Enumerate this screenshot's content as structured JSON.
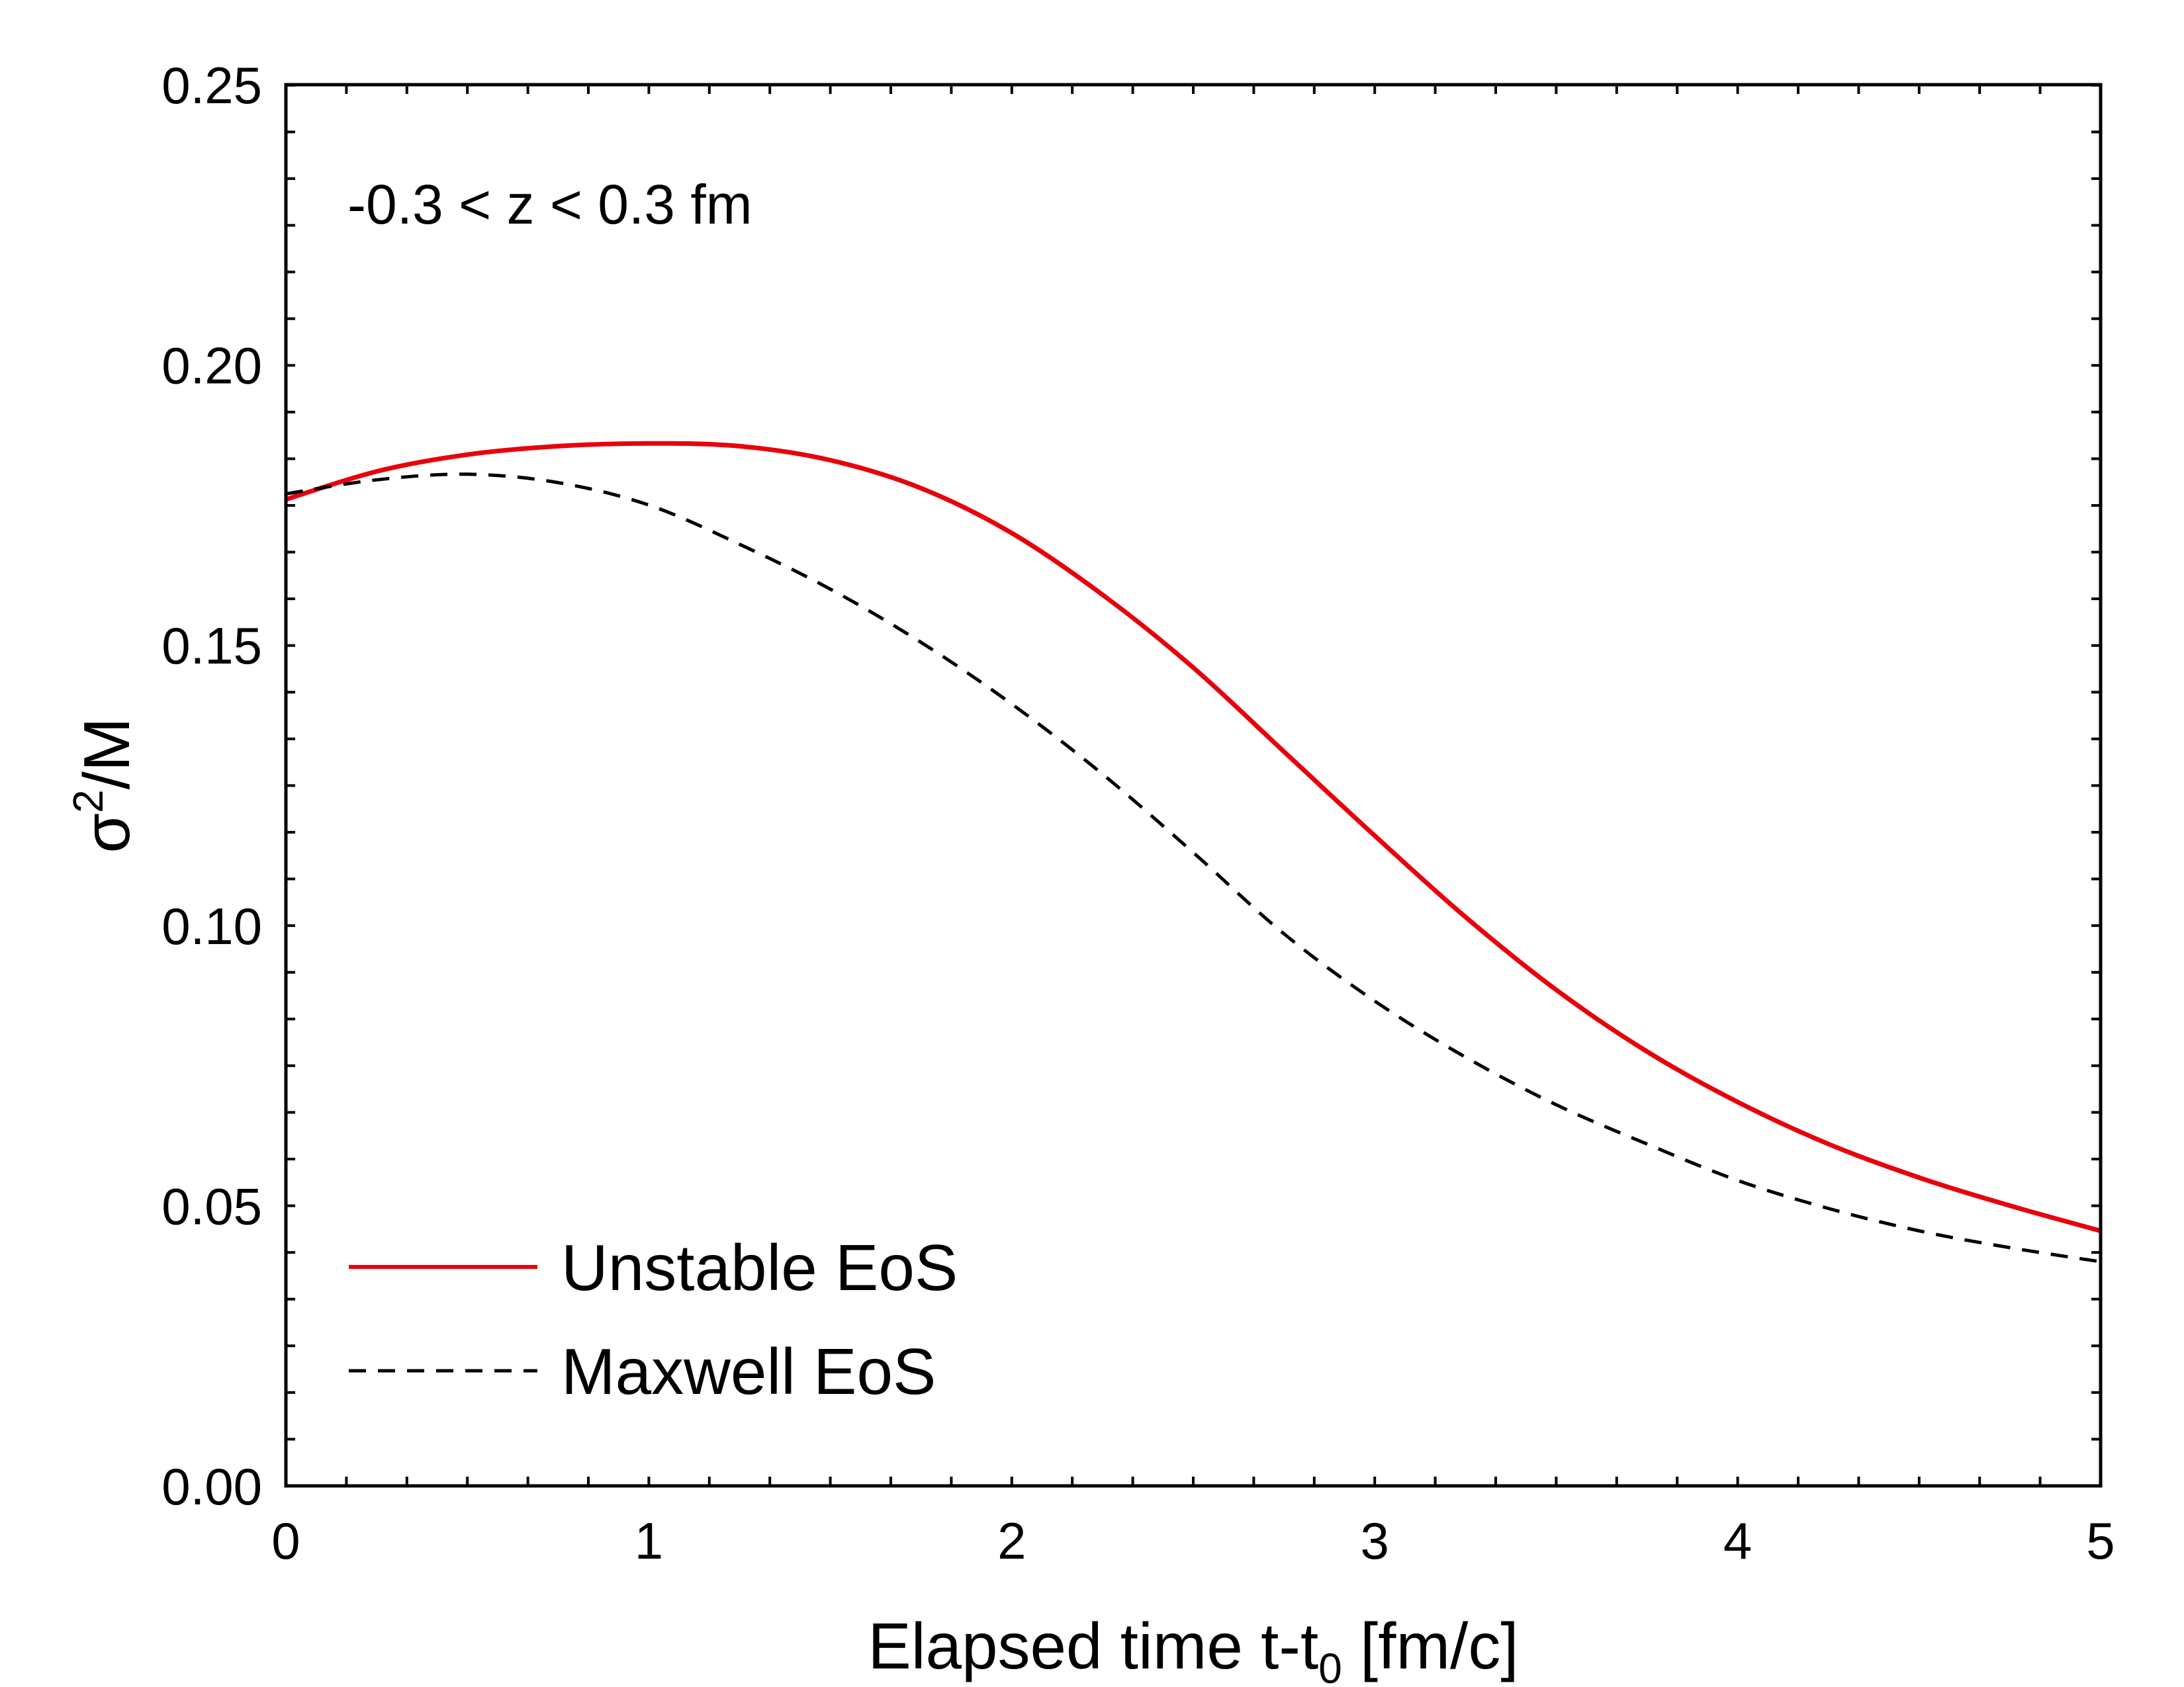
{
  "chart_data": {
    "type": "line",
    "xlabel": "Elapsed time t-t",
    "xlabel_sub": "0",
    "xlabel_suffix": " [fm/c]",
    "ylabel": "σ",
    "ylabel_sup": "2",
    "ylabel_suffix": "/M",
    "xlim": [
      0,
      5
    ],
    "ylim": [
      0,
      0.25
    ],
    "xticks": [
      0,
      1,
      2,
      3,
      4,
      5
    ],
    "xtick_labels": [
      "0",
      "1",
      "2",
      "3",
      "4",
      "5"
    ],
    "yticks": [
      0,
      0.05,
      0.1,
      0.15,
      0.2,
      0.25
    ],
    "ytick_labels": [
      "0.00",
      "0.05",
      "0.10",
      "0.15",
      "0.20",
      "0.25"
    ],
    "x_minor_step": 0.166667,
    "y_minor_step": 0.00833,
    "annotation": "-0.3 < z < 0.3 fm",
    "legend_position": "bottom-left",
    "series": [
      {
        "name": "Unstable EoS",
        "color": "#e8000b",
        "style": "solid",
        "x": [
          0,
          0.25,
          0.5,
          0.75,
          1.0,
          1.25,
          1.5,
          1.75,
          2.0,
          2.25,
          2.5,
          2.75,
          3.0,
          3.25,
          3.5,
          3.75,
          4.0,
          4.25,
          4.5,
          4.75,
          5.0
        ],
        "y": [
          0.176,
          0.181,
          0.184,
          0.1855,
          0.186,
          0.1855,
          0.183,
          0.178,
          0.17,
          0.159,
          0.146,
          0.131,
          0.116,
          0.1015,
          0.0885,
          0.0775,
          0.0685,
          0.061,
          0.055,
          0.05,
          0.0455
        ]
      },
      {
        "name": "Maxwell EoS",
        "color": "#000000",
        "style": "dashed",
        "x": [
          0,
          0.25,
          0.5,
          0.75,
          1.0,
          1.25,
          1.5,
          1.75,
          2.0,
          2.25,
          2.5,
          2.75,
          3.0,
          3.25,
          3.5,
          3.75,
          4.0,
          4.25,
          4.5,
          4.75,
          5.0
        ],
        "y": [
          0.177,
          0.1795,
          0.1805,
          0.179,
          0.175,
          0.168,
          0.16,
          0.1505,
          0.1395,
          0.127,
          0.113,
          0.0985,
          0.0865,
          0.0765,
          0.068,
          0.061,
          0.0545,
          0.0495,
          0.0455,
          0.0425,
          0.04
        ]
      }
    ]
  }
}
